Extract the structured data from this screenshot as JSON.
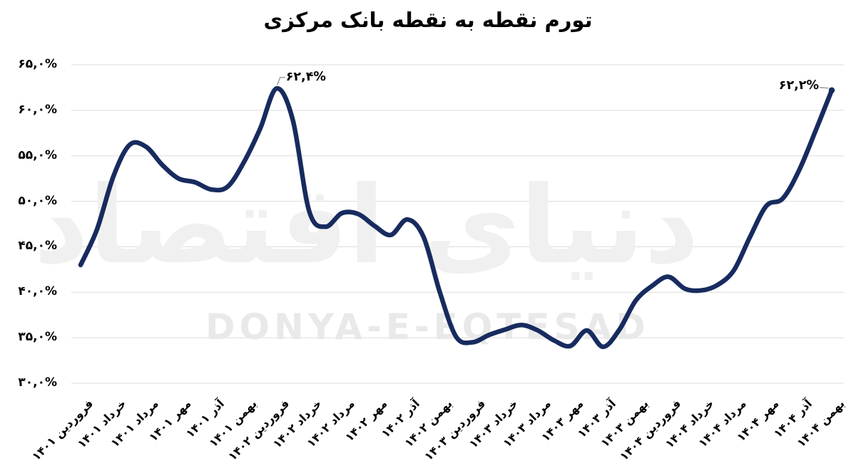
{
  "chart_data": {
    "type": "line",
    "title": "تورم نقطه به نقطه بانک مرکزی",
    "ylim": [
      30,
      65
    ],
    "grid": "horizontal-gridlines-only",
    "legend": "none",
    "y_tick_labels": [
      "۶۵,۰%",
      "۶۰,۰%",
      "۵۵,۰%",
      "۵۰,۰%",
      "۴۵,۰%",
      "۴۰,۰%",
      "۳۵,۰%",
      "۳۰,۰%"
    ],
    "y_tick_values": [
      65,
      60,
      55,
      50,
      45,
      40,
      35,
      30
    ],
    "x_tick_labels": [
      "فروردین ۱۴۰۱",
      "خرداد ۱۴۰۱",
      "مرداد ۱۴۰۱",
      "مهر ۱۴۰۱",
      "آذر ۱۴۰۱",
      "بهمن ۱۴۰۱",
      "فروردین ۱۴۰۲",
      "خرداد ۱۴۰۲",
      "مرداد ۱۴۰۲",
      "مهر ۱۴۰۲",
      "آذر ۱۴۰۲",
      "بهمن ۱۴۰۲",
      "فروردین ۱۴۰۳",
      "خرداد ۱۴۰۳",
      "مرداد ۱۴۰۳",
      "مهر ۱۴۰۳",
      "آذر ۱۴۰۳",
      "بهمن ۱۴۰۳",
      "فروردین ۱۴۰۴",
      "خرداد ۱۴۰۴",
      "مرداد ۱۴۰۴",
      "مهر ۱۴۰۴",
      "آذر ۱۴۰۴",
      "بهمن ۱۴۰۴"
    ],
    "x_tick_month_indices": [
      0,
      2,
      4,
      6,
      8,
      10,
      12,
      14,
      16,
      18,
      20,
      22,
      24,
      26,
      28,
      30,
      32,
      34,
      36,
      38,
      40,
      42,
      44,
      46
    ],
    "x_frequency": "monthly",
    "values": [
      43.0,
      46.9,
      52.7,
      56.2,
      56.0,
      54.0,
      52.5,
      52.1,
      51.3,
      51.6,
      54.3,
      58.0,
      62.4,
      58.9,
      48.9,
      47.2,
      48.7,
      48.6,
      47.3,
      46.3,
      48.0,
      46.1,
      40.0,
      35.1,
      34.5,
      35.3,
      35.9,
      36.4,
      35.8,
      34.7,
      34.1,
      35.8,
      34.0,
      35.9,
      39.1,
      40.7,
      41.7,
      40.4,
      40.2,
      40.8,
      42.4,
      46.1,
      49.5,
      50.3,
      53.4,
      57.7,
      62.2
    ],
    "annotations": [
      {
        "label": "۶۲,۴%",
        "index": 12,
        "value": 62.4
      },
      {
        "label": "۶۲,۲%",
        "index": 46,
        "value": 62.2
      }
    ]
  },
  "watermark": {
    "persian": "دنیای اقتصاد",
    "latin": "DONYA-E-EQTESAD"
  },
  "colors": {
    "line": "#172b5e",
    "grid": "#dcdcdc",
    "text": "#000000",
    "leader": "#999999",
    "watermark_persian": "#f0f0f0",
    "watermark_latin": "#e9e9e9",
    "background": "#ffffff"
  }
}
